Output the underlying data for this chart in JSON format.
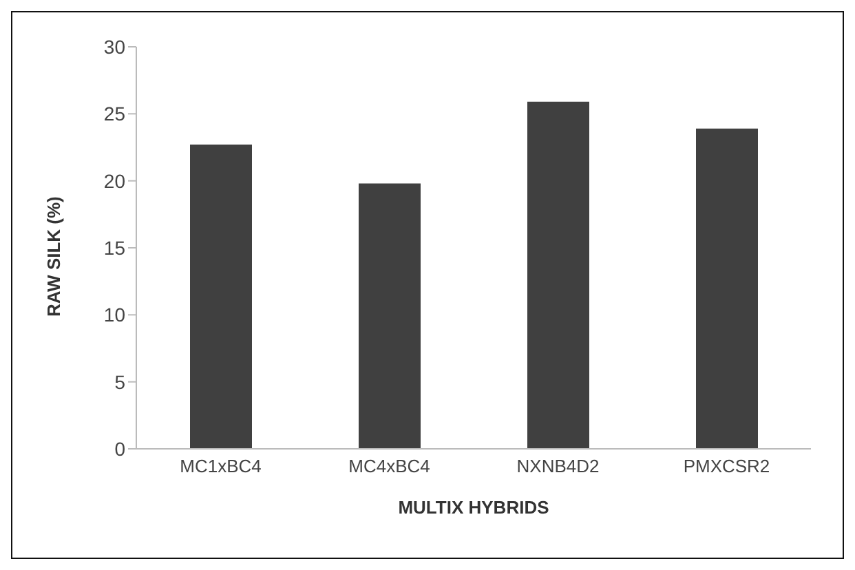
{
  "chart_data": {
    "type": "bar",
    "xlabel": "MULTIX HYBRIDS",
    "ylabel": "RAW SILK (%)",
    "categories": [
      "MC1xBC4",
      "MC4xBC4",
      "NXNB4D2",
      "PMXCSR2"
    ],
    "values": [
      22.7,
      19.8,
      25.9,
      23.9
    ],
    "color": "#404040",
    "ylim": [
      0,
      30
    ],
    "yticks": [
      0,
      5,
      10,
      15,
      20,
      25,
      30
    ],
    "grid": false,
    "legend": false
  }
}
